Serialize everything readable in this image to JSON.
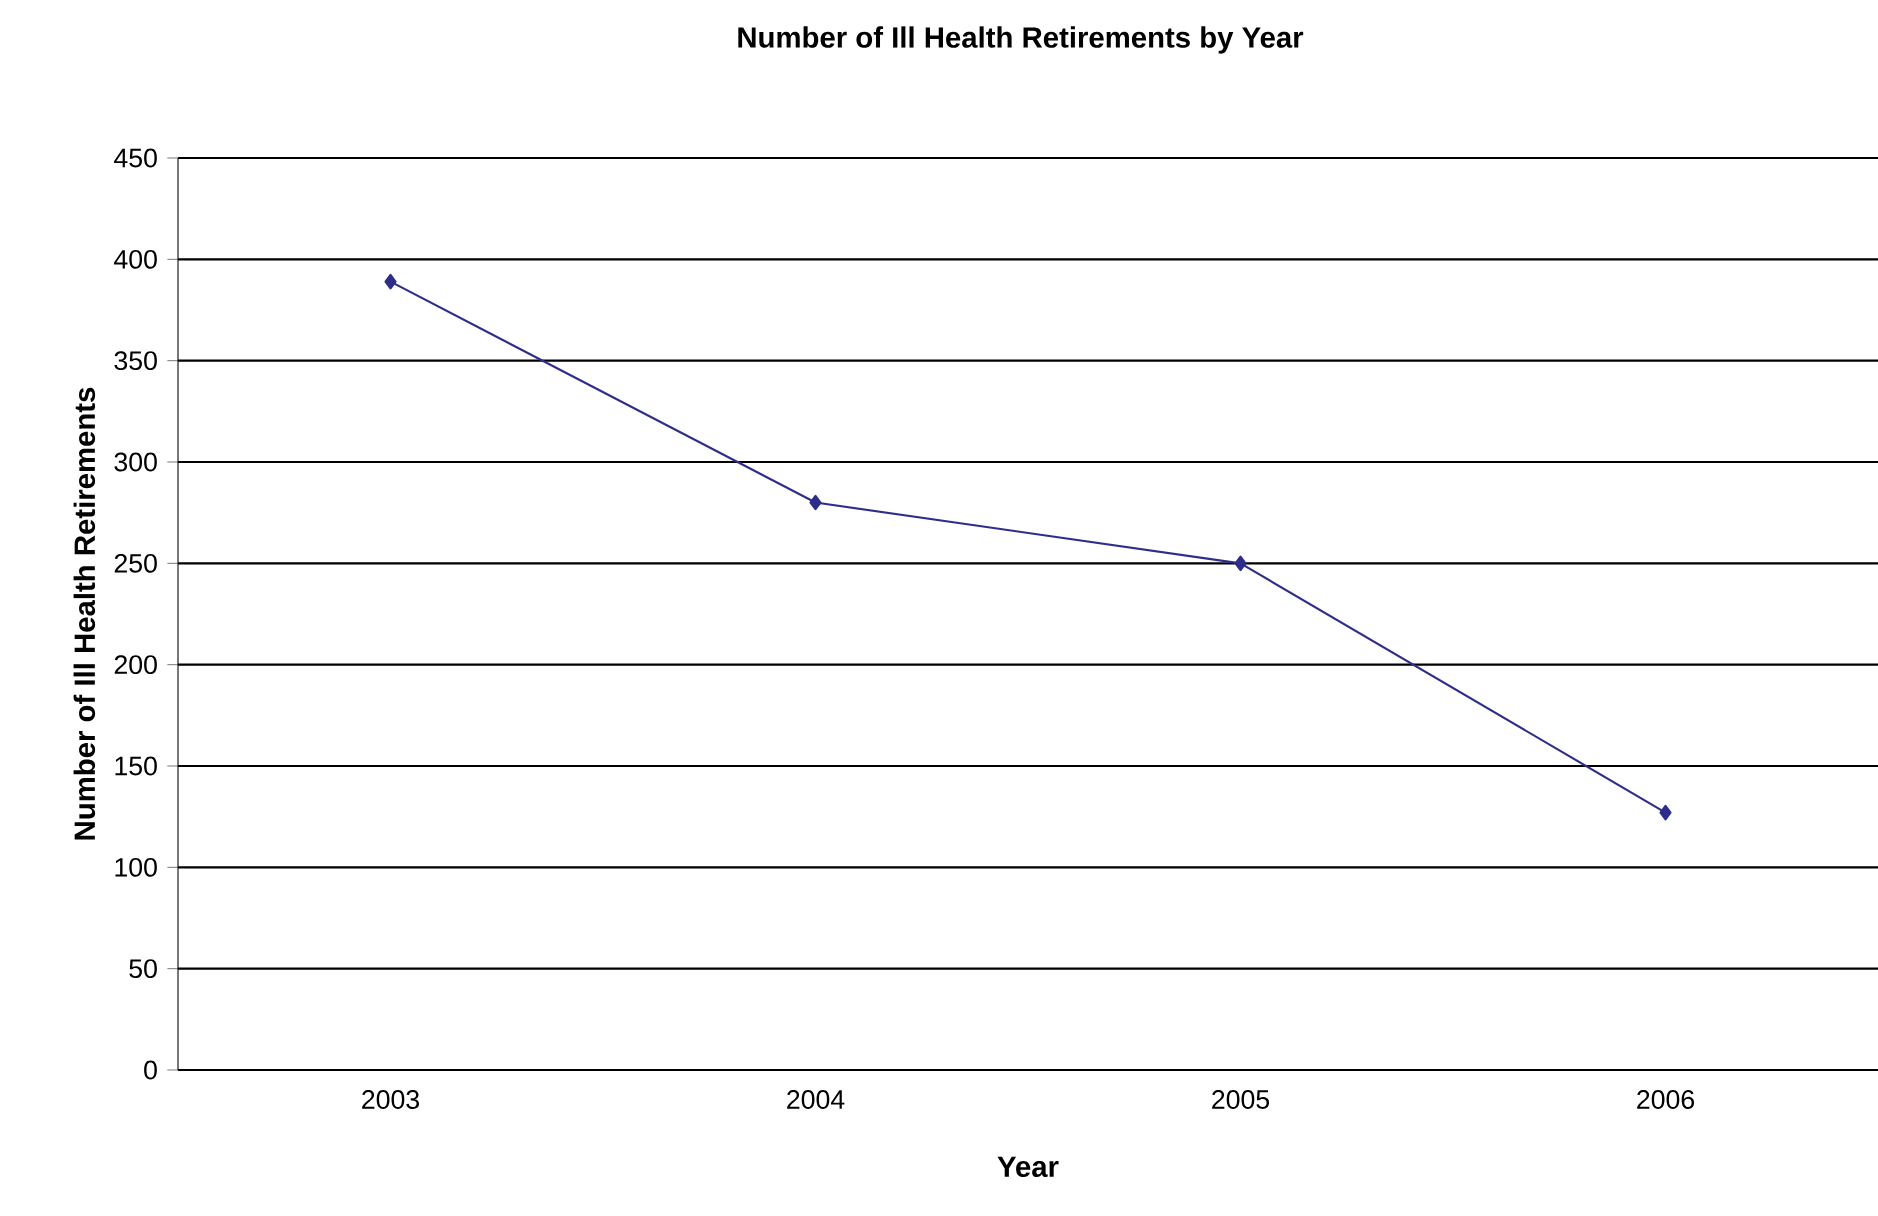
{
  "chart_data": {
    "type": "line",
    "title": "Number of Ill Health Retirements by Year",
    "xlabel": "Year",
    "ylabel": "Number of Ill Health Retirements",
    "categories": [
      "2003",
      "2004",
      "2005",
      "2006"
    ],
    "series": [
      {
        "color": "#2e2e8a",
        "values": [
          389,
          280,
          250,
          127
        ]
      }
    ],
    "ylim": [
      0,
      450
    ],
    "yticks": [
      0,
      50,
      100,
      150,
      200,
      250,
      300,
      350,
      400,
      450
    ],
    "grid": "y",
    "marker": "diamond",
    "line_style": "solid"
  }
}
